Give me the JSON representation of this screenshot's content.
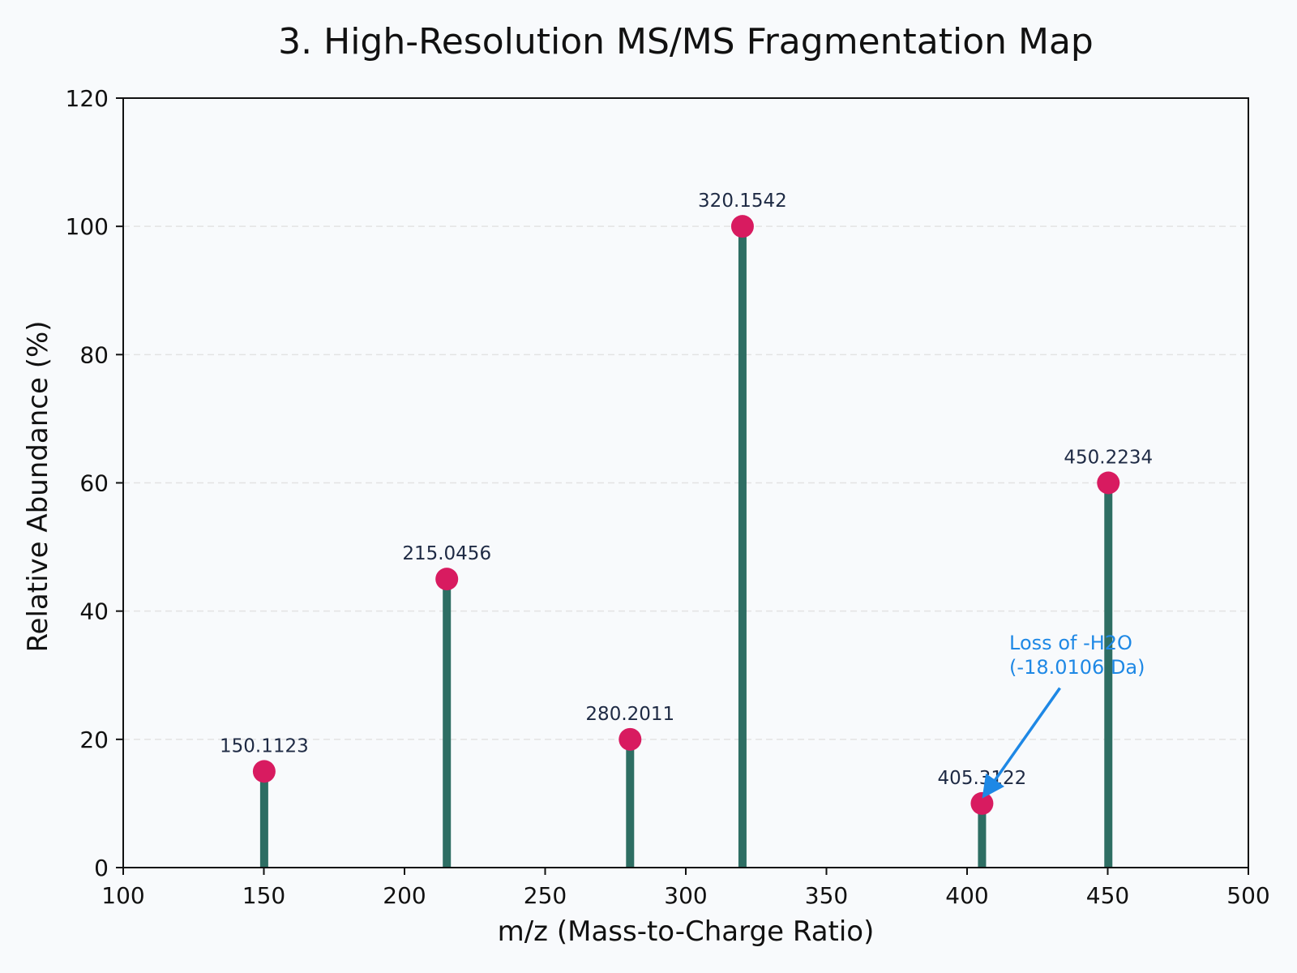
{
  "chart_data": {
    "type": "stem",
    "title": "3. High-Resolution MS/MS Fragmentation Map",
    "xlabel": "m/z (Mass-to-Charge Ratio)",
    "ylabel": "Relative Abundance (%)",
    "xlim": [
      100,
      500
    ],
    "ylim": [
      0,
      120
    ],
    "xticks": [
      100,
      150,
      200,
      250,
      300,
      350,
      400,
      450,
      500
    ],
    "yticks": [
      0,
      20,
      40,
      60,
      80,
      100,
      120
    ],
    "grid": "horizontal-dashed",
    "points": [
      {
        "x": 150.1123,
        "y": 15,
        "label": "150.1123"
      },
      {
        "x": 215.0456,
        "y": 45,
        "label": "215.0456"
      },
      {
        "x": 280.2011,
        "y": 20,
        "label": "280.2011"
      },
      {
        "x": 320.1542,
        "y": 100,
        "label": "320.1542"
      },
      {
        "x": 405.3122,
        "y": 10,
        "label": "405.3122"
      },
      {
        "x": 450.2234,
        "y": 60,
        "label": "450.2234"
      }
    ],
    "annotation": {
      "lines": [
        "Loss of -H2O",
        "(-18.0106 Da)"
      ],
      "text_x": 415,
      "text_y": 34,
      "arrow_from": [
        433,
        28
      ],
      "arrow_to": [
        406.5,
        11.5
      ],
      "color": "#1e88e5"
    },
    "colors": {
      "stem": "#2e6e63",
      "marker": "#d81b60",
      "grid": "#e3e3e3",
      "axis": "#111111"
    }
  }
}
